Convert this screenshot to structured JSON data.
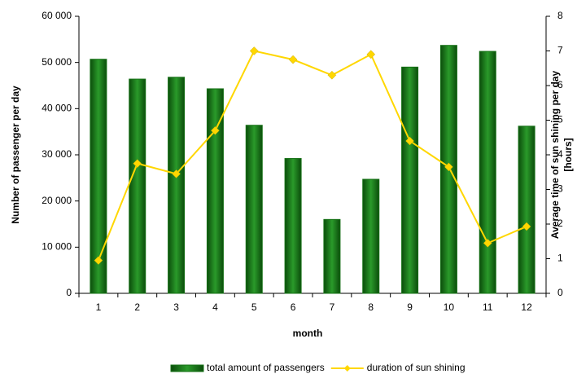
{
  "chart_data": {
    "type": "bar",
    "categories": [
      "1",
      "2",
      "3",
      "4",
      "5",
      "6",
      "7",
      "8",
      "9",
      "10",
      "11",
      "12"
    ],
    "series": [
      {
        "name": "total amount of passengers",
        "type": "bar",
        "color": "#157015",
        "values": [
          50700,
          46400,
          46800,
          44300,
          36400,
          29200,
          16000,
          24700,
          49000,
          53700,
          52400,
          36200
        ]
      },
      {
        "name": "duration of sun shining",
        "type": "line",
        "axis": "y2",
        "color": "#ffd700",
        "values": [
          0.95,
          3.75,
          3.45,
          4.7,
          7.0,
          6.75,
          6.3,
          6.9,
          4.4,
          3.65,
          1.45,
          1.93
        ]
      }
    ],
    "xlabel": "month",
    "ylabel": "Number of passenger per day",
    "y2label": [
      "Average time of sun shining per day",
      "[hours]"
    ],
    "ylim": [
      0,
      60000
    ],
    "yticks": [
      0,
      {
        "value": 10000,
        "label": "10 000"
      },
      {
        "value": 20000,
        "label": "20 000"
      },
      {
        "value": 30000,
        "label": "30 000"
      },
      {
        "value": 40000,
        "label": "40 000"
      },
      {
        "value": 50000,
        "label": "50 000"
      },
      {
        "value": 60000,
        "label": "60 000"
      }
    ],
    "y2lim": [
      0,
      8
    ],
    "y2ticks": [
      0,
      1,
      2,
      3,
      4,
      5,
      6,
      7,
      8
    ],
    "grid": false,
    "legend": "bottom"
  }
}
